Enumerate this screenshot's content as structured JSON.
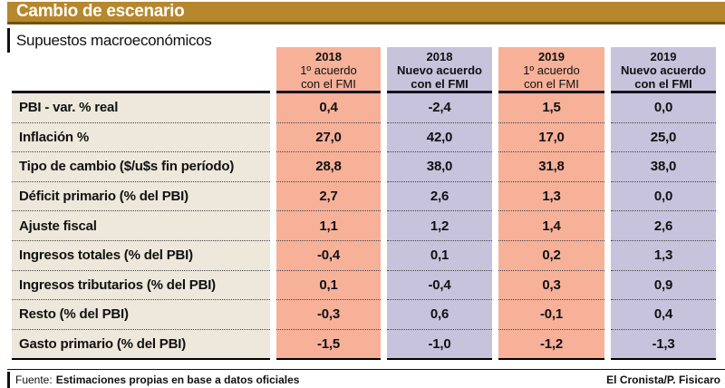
{
  "header": {
    "title": "Cambio de escenario",
    "subtitle": "Supuestos macroeconómicos"
  },
  "table": {
    "columns": [
      {
        "year": "2018",
        "line2": "1º acuerdo",
        "line3": "con el FMI",
        "variant": "first"
      },
      {
        "year": "2018",
        "line2": "Nuevo acuerdo",
        "line3": "con el FMI",
        "variant": "new"
      },
      {
        "year": "2019",
        "line2": "1º acuerdo",
        "line3": "con el FMI",
        "variant": "first"
      },
      {
        "year": "2019",
        "line2": "Nuevo acuerdo",
        "line3": "con el FMI",
        "variant": "new"
      }
    ],
    "rows": [
      {
        "label": "PBI - var. % real",
        "values": [
          "0,4",
          "-2,4",
          "1,5",
          "0,0"
        ]
      },
      {
        "label": "Inflación %",
        "values": [
          "27,0",
          "42,0",
          "17,0",
          "25,0"
        ]
      },
      {
        "label": "Tipo de cambio ($/u$s fin período)",
        "values": [
          "28,8",
          "38,0",
          "31,8",
          "38,0"
        ]
      },
      {
        "label": "Déficit primario (% del PBI)",
        "values": [
          "2,7",
          "2,6",
          "1,3",
          "0,0"
        ]
      },
      {
        "label": "Ajuste fiscal",
        "values": [
          "1,1",
          "1,2",
          "1,4",
          "2,6"
        ]
      },
      {
        "label": "Ingresos totales (% del PBI)",
        "values": [
          "-0,4",
          "0,1",
          "0,2",
          "1,3"
        ]
      },
      {
        "label": "Ingresos tributarios (% del PBI)",
        "values": [
          "0,1",
          "-0,4",
          "0,3",
          "0,9"
        ]
      },
      {
        "label": "Resto (% del PBI)",
        "values": [
          "-0,3",
          "0,6",
          "-0,1",
          "0,4"
        ]
      },
      {
        "label": "Gasto primario (% del PBI)",
        "values": [
          "-1,5",
          "-1,0",
          "-1,2",
          "-1,3"
        ]
      }
    ]
  },
  "footer": {
    "source_label": "Fuente:",
    "source_text": "Estimaciones propias en base a datos oficiales",
    "credit": "El Cronista/P. Fisicaro"
  },
  "colors": {
    "gold_bar": "#b6872c",
    "gold_border": "#6f520f",
    "first_agreement_column": "#f7b199",
    "new_agreement_column": "#c7c3dc",
    "label_column": "#ede8db"
  },
  "chart_data": {
    "type": "table",
    "title": "Cambio de escenario",
    "subtitle": "Supuestos macroeconómicos",
    "columns": [
      "2018 1º acuerdo con el FMI",
      "2018 Nuevo acuerdo con el FMI",
      "2019 1º acuerdo con el FMI",
      "2019 Nuevo acuerdo con el FMI"
    ],
    "rows": [
      {
        "label": "PBI - var. % real",
        "values": [
          0.4,
          -2.4,
          1.5,
          0.0
        ]
      },
      {
        "label": "Inflación %",
        "values": [
          27.0,
          42.0,
          17.0,
          25.0
        ]
      },
      {
        "label": "Tipo de cambio ($/u$s fin período)",
        "values": [
          28.8,
          38.0,
          31.8,
          38.0
        ]
      },
      {
        "label": "Déficit primario (% del PBI)",
        "values": [
          2.7,
          2.6,
          1.3,
          0.0
        ]
      },
      {
        "label": "Ajuste fiscal",
        "values": [
          1.1,
          1.2,
          1.4,
          2.6
        ]
      },
      {
        "label": "Ingresos totales (% del PBI)",
        "values": [
          -0.4,
          0.1,
          0.2,
          1.3
        ]
      },
      {
        "label": "Ingresos tributarios (% del PBI)",
        "values": [
          0.1,
          -0.4,
          0.3,
          0.9
        ]
      },
      {
        "label": "Resto (% del PBI)",
        "values": [
          -0.3,
          0.6,
          -0.1,
          0.4
        ]
      },
      {
        "label": "Gasto primario (% del PBI)",
        "values": [
          -1.5,
          -1.0,
          -1.2,
          -1.3
        ]
      }
    ],
    "source": "Fuente: Estimaciones propias en base a datos oficiales",
    "credit": "El Cronista/P. Fisicaro"
  }
}
